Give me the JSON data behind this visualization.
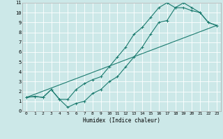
{
  "xlabel": "Humidex (Indice chaleur)",
  "bg_color": "#cce8e8",
  "line_color": "#1a7a6e",
  "grid_color": "#ffffff",
  "xlim": [
    -0.5,
    23.5
  ],
  "ylim": [
    0,
    11
  ],
  "xticks": [
    0,
    1,
    2,
    3,
    4,
    5,
    6,
    7,
    8,
    9,
    10,
    11,
    12,
    13,
    14,
    15,
    16,
    17,
    18,
    19,
    20,
    21,
    22,
    23
  ],
  "yticks": [
    0,
    1,
    2,
    3,
    4,
    5,
    6,
    7,
    8,
    9,
    10,
    11
  ],
  "line1_x": [
    0,
    1,
    2,
    3,
    4,
    5,
    6,
    7,
    8,
    9,
    10,
    11,
    12,
    13,
    14,
    15,
    16,
    17,
    18,
    19,
    20,
    21,
    22,
    23
  ],
  "line1_y": [
    1.4,
    1.5,
    1.4,
    2.2,
    1.2,
    0.4,
    0.8,
    1.0,
    1.8,
    2.2,
    3.0,
    3.5,
    4.5,
    5.5,
    6.5,
    7.8,
    9.0,
    9.2,
    10.5,
    11.0,
    10.5,
    10.0,
    9.0,
    8.7
  ],
  "line2_x": [
    0,
    1,
    2,
    3,
    4,
    5,
    6,
    7,
    8,
    9,
    10,
    11,
    12,
    13,
    14,
    15,
    16,
    17,
    18,
    19,
    20,
    21,
    22,
    23
  ],
  "line2_y": [
    1.4,
    1.5,
    1.4,
    2.2,
    1.2,
    1.2,
    2.2,
    2.8,
    3.2,
    3.5,
    4.5,
    5.5,
    6.5,
    7.8,
    8.5,
    9.5,
    10.5,
    11.0,
    10.5,
    10.5,
    10.2,
    10.0,
    9.0,
    8.7
  ],
  "line3_x": [
    0,
    23
  ],
  "line3_y": [
    1.4,
    8.7
  ]
}
